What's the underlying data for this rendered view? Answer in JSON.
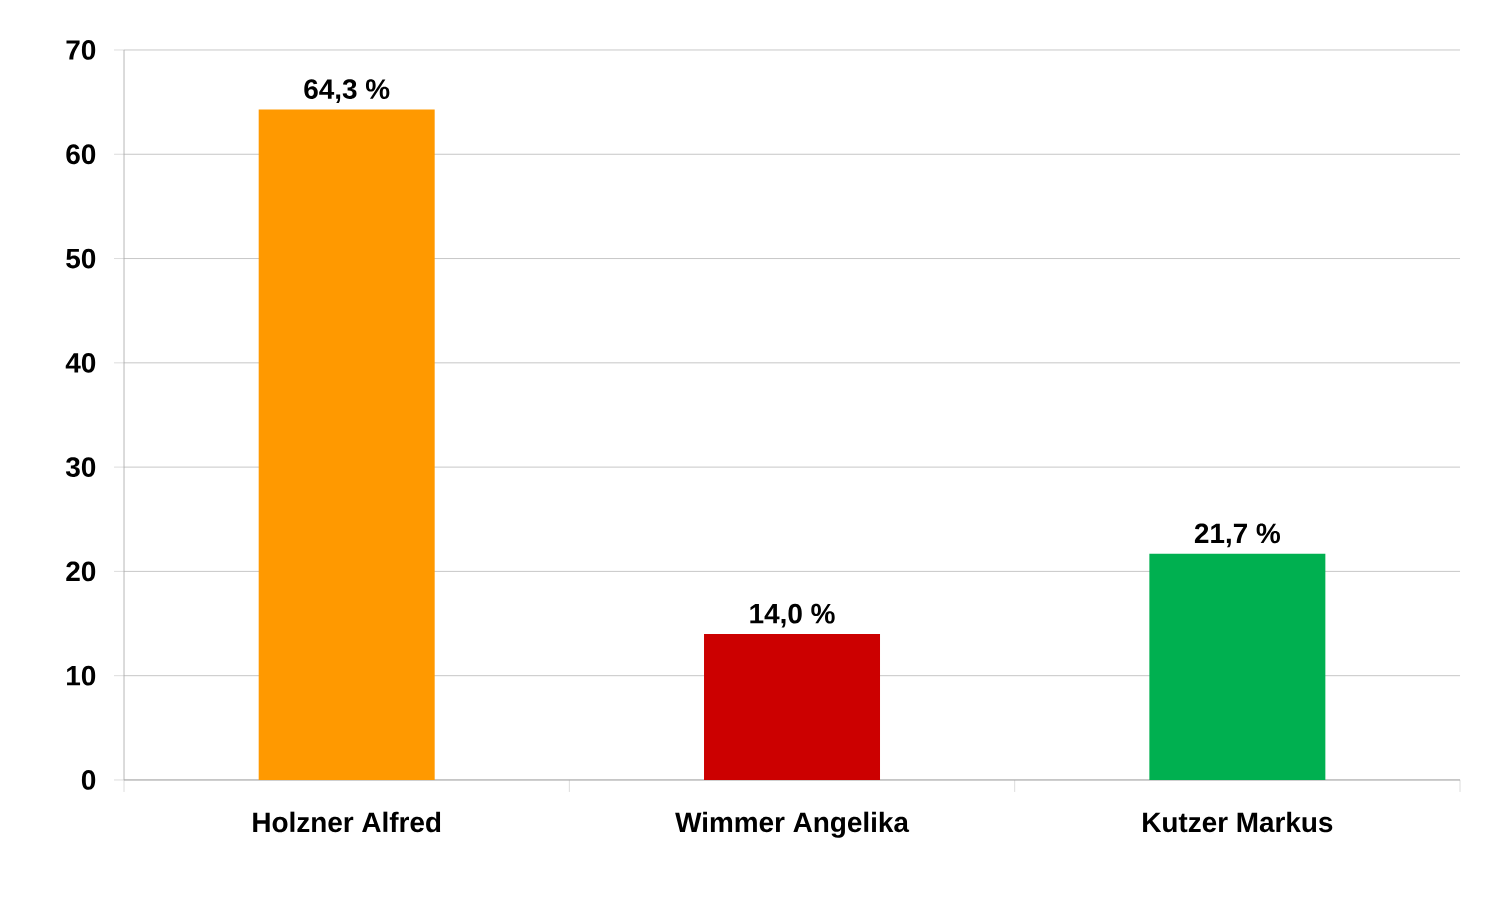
{
  "chart_data": {
    "type": "bar",
    "categories": [
      "Holzner Alfred",
      "Wimmer Angelika",
      "Kutzer Markus"
    ],
    "values": [
      64.3,
      14.0,
      21.7
    ],
    "colors": [
      "#ff9900",
      "#cc0000",
      "#00b050"
    ],
    "value_labels": [
      "64,3 %",
      "14,0 %",
      "21,7 %"
    ],
    "ylim": [
      0,
      70
    ],
    "yticks": [
      0,
      10,
      20,
      30,
      40,
      50,
      60,
      70
    ],
    "grid": "y"
  }
}
